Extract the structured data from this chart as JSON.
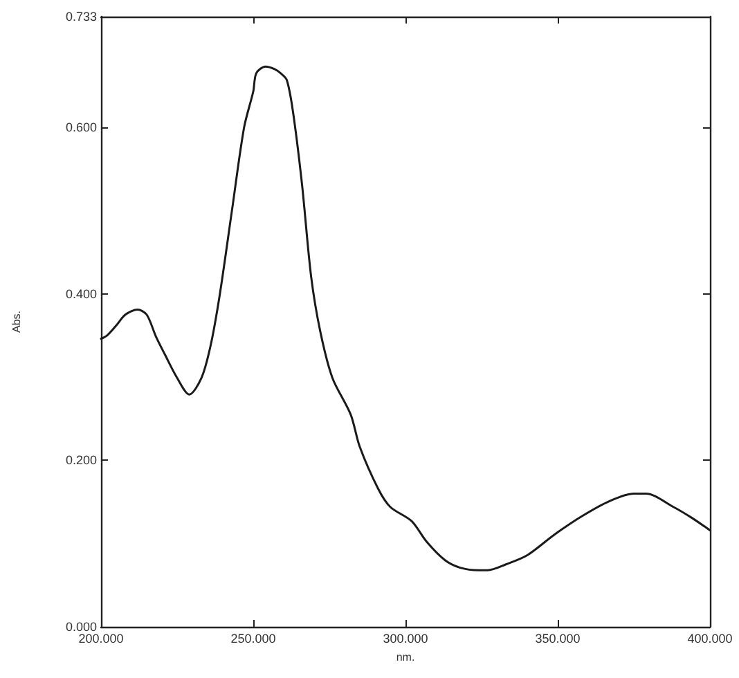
{
  "chart_data": {
    "type": "line",
    "xlabel": "nm.",
    "ylabel": "Abs.",
    "x": [
      200,
      202,
      205,
      208,
      212,
      215,
      218,
      221,
      225,
      229,
      233,
      236,
      239,
      243,
      247,
      250,
      251,
      254,
      257,
      259,
      261,
      263,
      266,
      269,
      272,
      276,
      282,
      285,
      291,
      295,
      302,
      307,
      313,
      318,
      324,
      327,
      333,
      340,
      349,
      358,
      367,
      375,
      379,
      388,
      394,
      400
    ],
    "series": [
      {
        "color": "#1a1a1a",
        "values": [
          0.346,
          0.35,
          0.362,
          0.375,
          0.381,
          0.375,
          0.349,
          0.327,
          0.299,
          0.279,
          0.299,
          0.338,
          0.399,
          0.5,
          0.6,
          0.643,
          0.665,
          0.673,
          0.67,
          0.665,
          0.657,
          0.62,
          0.532,
          0.421,
          0.355,
          0.299,
          0.255,
          0.216,
          0.166,
          0.144,
          0.127,
          0.102,
          0.08,
          0.071,
          0.068,
          0.068,
          0.075,
          0.086,
          0.111,
          0.133,
          0.151,
          0.16,
          0.16,
          0.144,
          0.131,
          0.116
        ]
      }
    ],
    "xlim": [
      200,
      400
    ],
    "xticks": [
      {
        "value": 200,
        "label": "200.000"
      },
      {
        "value": 250,
        "label": "250.000"
      },
      {
        "value": 300,
        "label": "300.000"
      },
      {
        "value": 350,
        "label": "350.000"
      },
      {
        "value": 400,
        "label": "400.000"
      }
    ],
    "ylim": [
      0,
      0.733
    ],
    "yticks": [
      {
        "value": 0,
        "label": "0.000"
      },
      {
        "value": 0.2,
        "label": "0.200"
      },
      {
        "value": 0.4,
        "label": "0.400"
      },
      {
        "value": 0.6,
        "label": "0.600"
      },
      {
        "value": 0.733,
        "label": "0.733"
      }
    ],
    "grid": false,
    "marker": "none",
    "line_style": "solid"
  }
}
